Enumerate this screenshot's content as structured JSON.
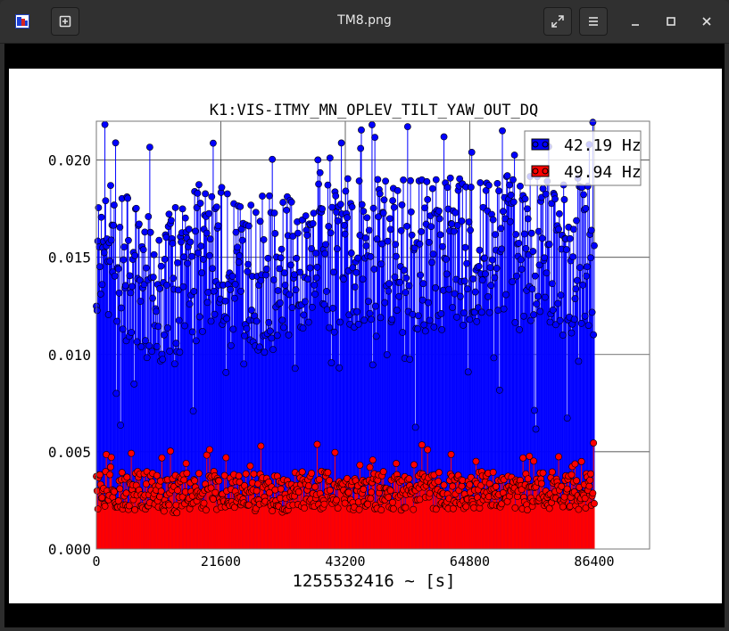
{
  "window": {
    "title": "TM8.png"
  },
  "icons": {
    "app": "image-viewer-icon",
    "new_tab": "new-tab-icon",
    "fullscreen": "fullscreen-icon",
    "menu": "hamburger-menu-icon",
    "minimize": "minimize-icon",
    "maximize": "maximize-icon",
    "close": "close-icon"
  },
  "colors": {
    "series1": "#0000ff",
    "series2": "#ff0000",
    "marker_edge": "#000000"
  },
  "chart_data": {
    "type": "line",
    "title": "K1:VIS-ITMY_MN_OPLEV_TILT_YAW_OUT_DQ",
    "xlabel": "1255532416 ~ [s]",
    "ylabel": "",
    "xlim": [
      0,
      86400
    ],
    "ylim": [
      0,
      0.022
    ],
    "xticks": [
      "0",
      "21600",
      "43200",
      "64800",
      "86400"
    ],
    "yticks": [
      "0.000",
      "0.005",
      "0.010",
      "0.015",
      "0.020"
    ],
    "grid": true,
    "legend_position": "top-right",
    "style": "stem with circle markers",
    "series": [
      {
        "name": "42.19 Hz",
        "color": "#0000ff",
        "summary": "dense noisy stems, typical 0.010-0.019, peaks ~0.022, occasional dips to ~0.006",
        "x": [
          0,
          4320,
          8640,
          12960,
          17280,
          21600,
          25920,
          30240,
          34560,
          38880,
          43200,
          47520,
          51840,
          56160,
          60480,
          64800,
          69120,
          73440,
          77760,
          82080,
          86400
        ],
        "values": [
          0.0145,
          0.015,
          0.014,
          0.0135,
          0.0145,
          0.015,
          0.014,
          0.014,
          0.015,
          0.0155,
          0.015,
          0.015,
          0.015,
          0.0155,
          0.015,
          0.015,
          0.015,
          0.015,
          0.015,
          0.015,
          0.015
        ]
      },
      {
        "name": "49.94 Hz",
        "color": "#ff0000",
        "summary": "dense stems, typical 0.0020-0.0040, peaks ~0.0055",
        "x": [
          0,
          4320,
          8640,
          12960,
          17280,
          21600,
          25920,
          30240,
          34560,
          38880,
          43200,
          47520,
          51840,
          56160,
          60480,
          64800,
          69120,
          73440,
          77760,
          82080,
          86400
        ],
        "values": [
          0.003,
          0.003,
          0.003,
          0.0028,
          0.003,
          0.003,
          0.003,
          0.0028,
          0.003,
          0.003,
          0.003,
          0.003,
          0.003,
          0.003,
          0.003,
          0.003,
          0.003,
          0.003,
          0.003,
          0.003,
          0.003
        ]
      }
    ]
  }
}
